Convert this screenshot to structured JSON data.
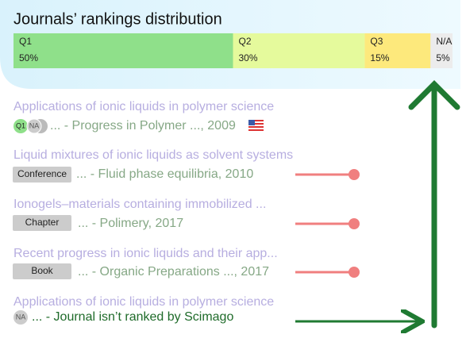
{
  "panel": {
    "title": "Journals’ rankings distribution",
    "segments": [
      {
        "label": "Q1",
        "value": 50,
        "value_label": "50%",
        "color": "#8fe08a"
      },
      {
        "label": "Q2",
        "value": 30,
        "value_label": "30%",
        "color": "#e5fa9c"
      },
      {
        "label": "Q3",
        "value": 15,
        "value_label": "15%",
        "color": "#fde97c"
      },
      {
        "label": "N/A",
        "value": 5,
        "value_label": "5%",
        "color": "#ececec"
      }
    ]
  },
  "items": [
    {
      "title": "Applications of ionic liquids in polymer science",
      "badges": [
        "Q1",
        "NA"
      ],
      "source": "... - Progress in Polymer ..., 2009"
    },
    {
      "title": "Liquid mixtures of ionic liquids as solvent systems",
      "badge": "Conference",
      "source": "... - Fluid phase equilibria, 2010"
    },
    {
      "title": "Ionogels–materials containing immobilized ...",
      "badge": "Chapter",
      "source": "... - Polimery, 2017"
    },
    {
      "title": "Recent progress in ionic liquids and their app...",
      "badge": "Book",
      "source": "... - Organic Preparations ..., 2017"
    },
    {
      "title": "Applications of ionic liquids in polymer science",
      "badges": [
        "NA"
      ],
      "source": "... - Journal isn’t ranked by Scimago"
    }
  ]
}
